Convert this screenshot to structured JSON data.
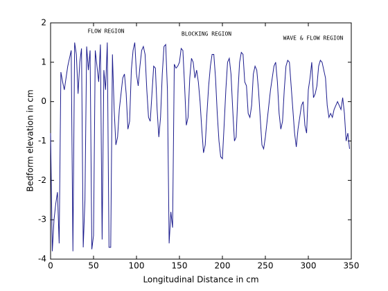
{
  "chart_data": {
    "type": "line",
    "xlabel": "Longitudinal Distance in cm",
    "ylabel": "Bedform elevation in cm",
    "annotations": [
      "FLOW REGION",
      "BLOCKING REGION",
      "WAVE & FLOW REGION"
    ],
    "x": [
      0,
      2,
      4,
      6,
      8,
      10,
      12,
      14,
      16,
      18,
      20,
      22,
      24,
      26,
      28,
      30,
      32,
      34,
      36,
      38,
      40,
      42,
      44,
      46,
      48,
      50,
      52,
      54,
      56,
      58,
      60,
      62,
      64,
      66,
      68,
      70,
      72,
      74,
      76,
      78,
      80,
      82,
      84,
      86,
      88,
      90,
      92,
      94,
      96,
      98,
      100,
      102,
      104,
      106,
      108,
      110,
      112,
      114,
      116,
      118,
      120,
      122,
      124,
      126,
      128,
      130,
      132,
      134,
      136,
      138,
      140,
      142,
      144,
      146,
      148,
      150,
      152,
      154,
      156,
      158,
      160,
      162,
      164,
      166,
      168,
      170,
      172,
      174,
      176,
      178,
      180,
      182,
      184,
      186,
      188,
      190,
      192,
      194,
      196,
      198,
      200,
      202,
      204,
      206,
      208,
      210,
      212,
      214,
      216,
      218,
      220,
      222,
      224,
      226,
      228,
      230,
      232,
      234,
      236,
      238,
      240,
      242,
      244,
      246,
      248,
      250,
      252,
      254,
      256,
      258,
      260,
      262,
      264,
      266,
      268,
      270,
      272,
      274,
      276,
      278,
      280,
      282,
      284,
      286,
      288,
      290,
      292,
      294,
      296,
      298,
      300,
      302,
      304,
      306,
      308,
      310,
      312,
      314,
      316,
      318,
      320,
      322,
      324,
      326,
      328,
      330,
      332,
      334,
      336,
      338,
      340,
      342,
      344,
      346,
      348
    ],
    "series": [
      {
        "color": "#1a1a8c",
        "values": [
          -0.8,
          -3.8,
          -3.0,
          -2.6,
          -2.3,
          -3.6,
          0.75,
          0.5,
          0.3,
          0.6,
          0.9,
          1.1,
          1.3,
          -3.8,
          1.5,
          1.2,
          0.2,
          1.0,
          1.35,
          -3.7,
          -2.5,
          1.4,
          0.8,
          1.3,
          -3.75,
          -3.4,
          1.3,
          0.9,
          0.5,
          1.45,
          -3.5,
          0.8,
          0.3,
          1.5,
          -3.7,
          -3.7,
          1.2,
          -0.2,
          -1.1,
          -0.9,
          -0.2,
          0.2,
          0.6,
          0.7,
          0.2,
          -0.7,
          -0.5,
          0.8,
          1.3,
          1.5,
          0.7,
          0.4,
          0.9,
          1.3,
          1.4,
          1.2,
          0.3,
          -0.4,
          -0.5,
          0.2,
          0.9,
          0.85,
          -0.2,
          -0.9,
          -0.4,
          0.7,
          1.4,
          1.45,
          0.3,
          -3.6,
          -2.8,
          -3.2,
          0.95,
          0.85,
          0.9,
          1.0,
          1.35,
          1.3,
          0.4,
          -0.6,
          -0.4,
          0.6,
          1.1,
          1.0,
          0.6,
          0.8,
          0.5,
          0.0,
          -0.7,
          -1.3,
          -1.1,
          -0.3,
          0.4,
          0.9,
          1.2,
          1.2,
          0.6,
          -0.3,
          -1.0,
          -1.4,
          -1.45,
          -0.6,
          0.3,
          1.0,
          1.1,
          0.7,
          -0.2,
          -1.0,
          -0.9,
          0.2,
          1.0,
          1.25,
          1.2,
          0.5,
          0.4,
          -0.3,
          -0.4,
          -0.1,
          0.7,
          0.9,
          0.8,
          0.3,
          -0.4,
          -1.1,
          -1.2,
          -0.9,
          -0.5,
          -0.1,
          0.3,
          0.6,
          0.9,
          1.0,
          0.5,
          -0.3,
          -0.7,
          -0.5,
          0.3,
          0.9,
          1.05,
          1.0,
          0.4,
          -0.2,
          -0.8,
          -1.15,
          -0.7,
          -0.4,
          -0.1,
          0.0,
          -0.6,
          -0.8,
          0.3,
          0.6,
          1.0,
          0.1,
          0.2,
          0.4,
          0.9,
          1.05,
          1.0,
          0.8,
          0.6,
          -0.1,
          -0.4,
          -0.3,
          -0.4,
          -0.2,
          -0.1,
          0.0,
          -0.1,
          -0.2,
          0.1,
          -0.3,
          -1.0,
          -0.8,
          -1.2
        ]
      }
    ],
    "xlim": [
      0,
      350
    ],
    "xticks": [
      0,
      50,
      100,
      150,
      200,
      250,
      300,
      350
    ],
    "ylim": [
      -4,
      2
    ],
    "yticks": [
      -4,
      -3,
      -2,
      -1,
      0,
      1,
      2
    ]
  }
}
